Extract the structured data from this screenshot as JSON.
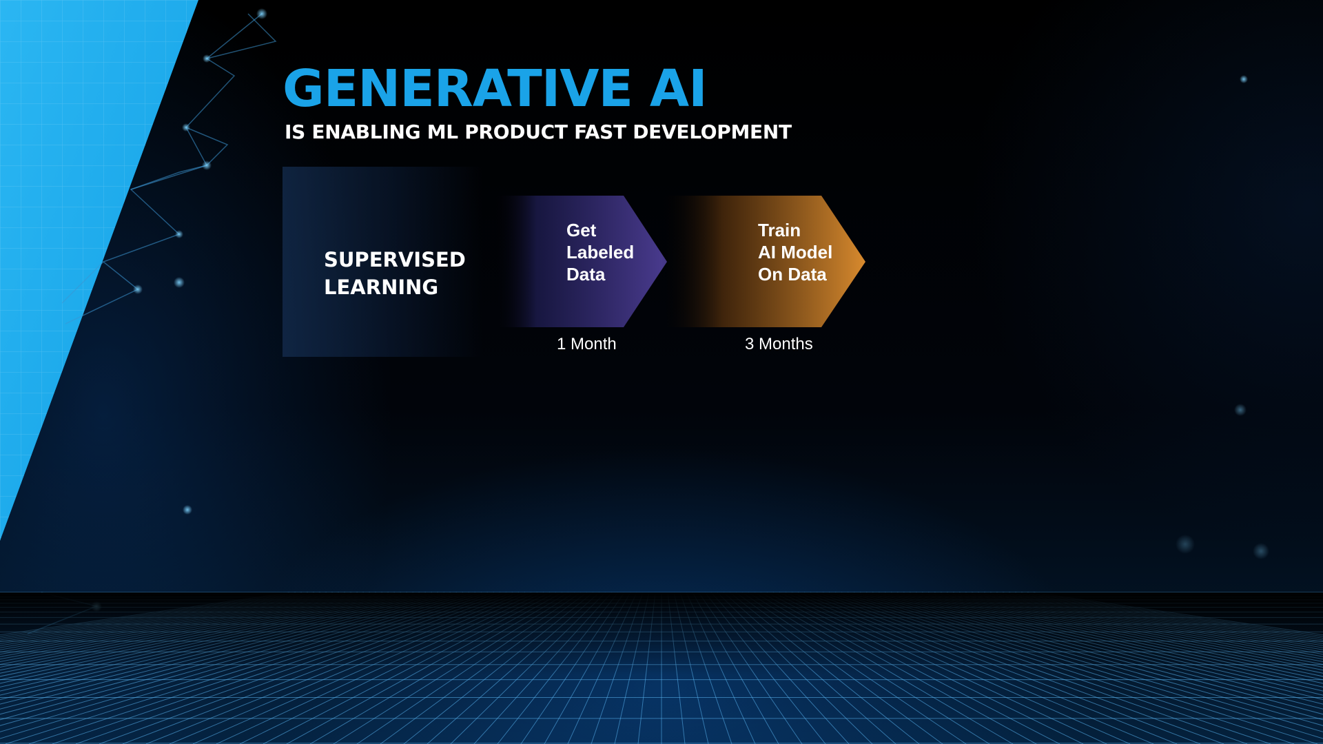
{
  "slide": {
    "title": "GENERATIVE AI",
    "subtitle": "IS ENABLING ML PRODUCT FAST DEVELOPMENT"
  },
  "process": {
    "label": "SUPERVISED\nLEARNING",
    "steps": [
      {
        "label": "Get\nLabeled\nData",
        "duration": "1 Month",
        "color": "#4a3b8f"
      },
      {
        "label": "Train\nAI Model\nOn Data",
        "duration": "3 Months",
        "color": "#d88a2e"
      }
    ]
  },
  "theme": {
    "accent": "#1aa3e8",
    "background": "#000000"
  }
}
